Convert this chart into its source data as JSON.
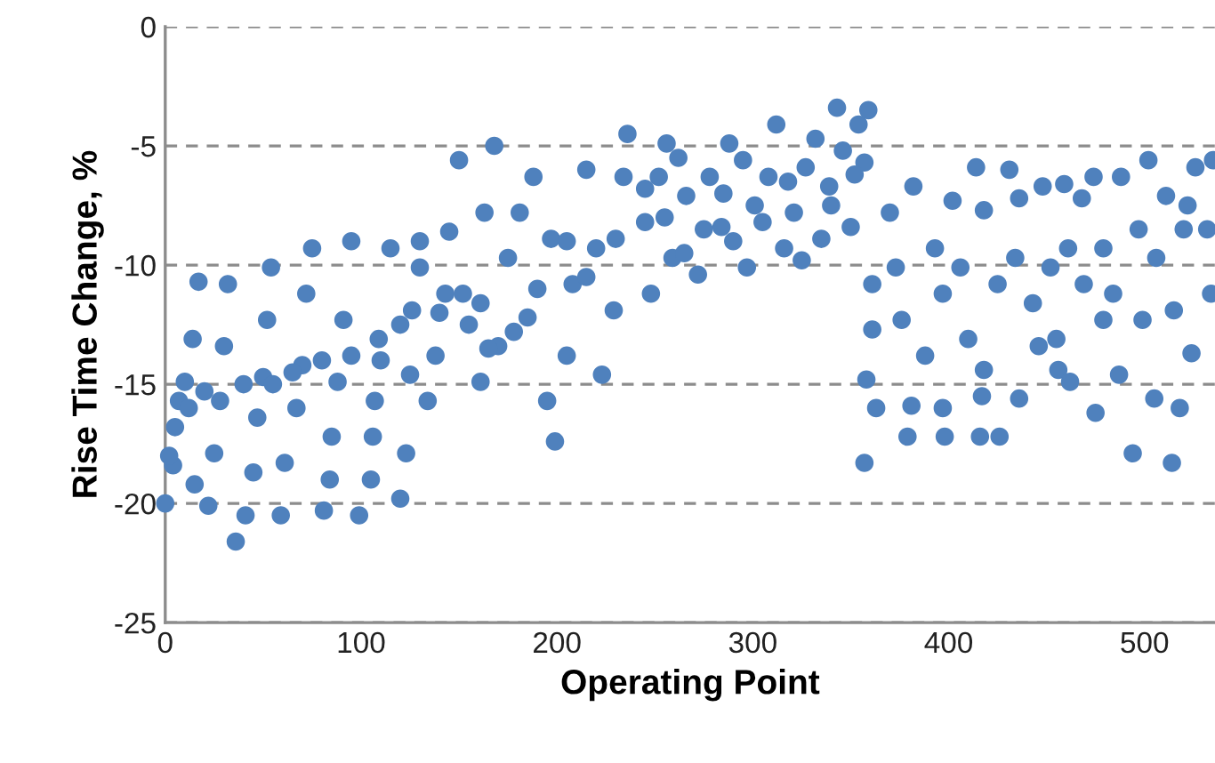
{
  "chart_data": {
    "type": "scatter",
    "xlabel": "Operating Point",
    "ylabel": "Rise Time Change, %",
    "xlim": [
      0,
      536
    ],
    "ylim": [
      -25,
      0
    ],
    "xticks": [
      0,
      100,
      200,
      300,
      400,
      500
    ],
    "yticks": [
      -25,
      -20,
      -15,
      -10,
      -5,
      0
    ],
    "grid": "y",
    "marker": "circle",
    "legend": false,
    "series": [
      {
        "color": "#4f81bd",
        "x": [
          0,
          4,
          5,
          7,
          10,
          14,
          17,
          15,
          22,
          25,
          28,
          30,
          32,
          36,
          41,
          45,
          47,
          50,
          52,
          54,
          59,
          61,
          67,
          70,
          72,
          75,
          81,
          84,
          85,
          88,
          91,
          95,
          99,
          105,
          106,
          107,
          109,
          115,
          120,
          123,
          125,
          126,
          130,
          130,
          134,
          138,
          143,
          145,
          152,
          150,
          161,
          161,
          163,
          170,
          168,
          175,
          181,
          185,
          188,
          195,
          197,
          199,
          205,
          208,
          215,
          220,
          223,
          229,
          234,
          236,
          245,
          248,
          252,
          256,
          259,
          266,
          272,
          278,
          284,
          288,
          295,
          297,
          301,
          308,
          312,
          316,
          321,
          327,
          332,
          335,
          339,
          343,
          346,
          350,
          354,
          357,
          359,
          357,
          358,
          361,
          361,
          363,
          370,
          373,
          376,
          379,
          381,
          382,
          388,
          393,
          397,
          402,
          406,
          398,
          397,
          410,
          414,
          417,
          418,
          425,
          431,
          416,
          434,
          436,
          418,
          443,
          448,
          436,
          452,
          455,
          459,
          456,
          461,
          468,
          469,
          474,
          475,
          479,
          484,
          488,
          487,
          494,
          497,
          499,
          502,
          505,
          506,
          511,
          514,
          518,
          520,
          524,
          526,
          532,
          534,
          535,
          515,
          522,
          479,
          446,
          426,
          462,
          255,
          265,
          275,
          285,
          290,
          305,
          318,
          325,
          340,
          352,
          262,
          245,
          230,
          215,
          205,
          190,
          178,
          165,
          155,
          140,
          120,
          110,
          95,
          80,
          65,
          55,
          40,
          20,
          12,
          2
        ],
        "values": [
          -20,
          -18.4,
          -16.8,
          -15.7,
          -14.9,
          -13.1,
          -10.7,
          -19.2,
          -20.1,
          -17.9,
          -15.7,
          -13.4,
          -10.8,
          -21.6,
          -20.5,
          -18.7,
          -16.4,
          -14.7,
          -12.3,
          -10.1,
          -20.5,
          -18.3,
          -16,
          -14.2,
          -11.2,
          -9.3,
          -20.3,
          -19,
          -17.2,
          -14.9,
          -12.3,
          -9,
          -20.5,
          -19,
          -17.2,
          -15.7,
          -13.1,
          -9.3,
          -19.8,
          -17.9,
          -14.6,
          -11.9,
          -10.1,
          -9,
          -15.7,
          -13.8,
          -11.2,
          -8.6,
          -11.2,
          -5.6,
          -14.9,
          -11.6,
          -7.8,
          -13.4,
          -5,
          -9.7,
          -7.8,
          -12.2,
          -6.3,
          -15.7,
          -8.9,
          -17.4,
          -13.8,
          -10.8,
          -6,
          -9.3,
          -14.6,
          -11.9,
          -6.3,
          -4.5,
          -8.2,
          -11.2,
          -6.3,
          -4.9,
          -9.7,
          -7.1,
          -10.4,
          -6.3,
          -8.4,
          -4.9,
          -5.6,
          -10.1,
          -7.5,
          -6.3,
          -4.1,
          -9.3,
          -7.8,
          -5.9,
          -4.7,
          -8.9,
          -6.7,
          -3.4,
          -5.2,
          -8.4,
          -4.1,
          -5.7,
          -3.5,
          -18.3,
          -14.8,
          -12.7,
          -10.8,
          -16,
          -7.8,
          -10.1,
          -12.3,
          -17.2,
          -15.9,
          -6.7,
          -13.8,
          -9.3,
          -11.2,
          -7.3,
          -10.1,
          -17.2,
          -16,
          -13.1,
          -5.9,
          -15.5,
          -7.7,
          -10.8,
          -6,
          -17.2,
          -9.7,
          -7.2,
          -14.4,
          -11.6,
          -6.7,
          -15.6,
          -10.1,
          -13.1,
          -6.6,
          -14.4,
          -9.3,
          -7.2,
          -10.8,
          -6.3,
          -16.2,
          -9.3,
          -11.2,
          -6.3,
          -14.6,
          -17.9,
          -8.5,
          -12.3,
          -5.6,
          -15.6,
          -9.7,
          -7.1,
          -18.3,
          -16,
          -8.5,
          -13.7,
          -5.9,
          -8.5,
          -11.2,
          -5.6,
          -11.9,
          -7.5,
          -12.3,
          -13.4,
          -17.2,
          -14.9,
          -8,
          -9.5,
          -8.5,
          -7,
          -9,
          -8.2,
          -6.5,
          -9.8,
          -7.5,
          -6.2,
          -5.5,
          -6.8,
          -8.9,
          -10.5,
          -9,
          -11,
          -12.8,
          -13.5,
          -12.5,
          -12,
          -12.5,
          -14,
          -13.8,
          -14,
          -14.5,
          -15,
          -15,
          -15.3,
          -16,
          -18
        ]
      }
    ]
  }
}
